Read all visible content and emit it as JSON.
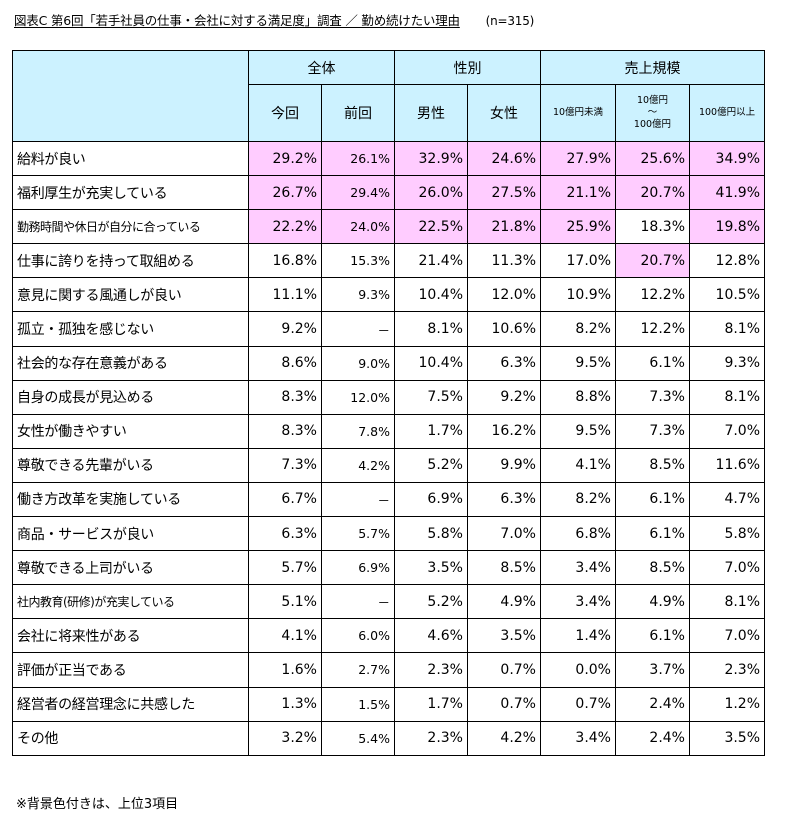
{
  "title": {
    "main": "図表C 第6回「若手社員の仕事・会社に対する満足度」調査 ／ 勤め続けたい理由",
    "n": "(n=315)"
  },
  "footnote": "※背景色付きは、上位3項目",
  "colors": {
    "header_bg": "#ccf2ff",
    "highlight_bg": "#ffccff"
  },
  "chart_data": {
    "type": "table",
    "groups": [
      {
        "label": "全体",
        "columns": [
          "今回",
          "前回"
        ]
      },
      {
        "label": "性別",
        "columns": [
          "男性",
          "女性"
        ]
      },
      {
        "label": "売上規模",
        "columns": [
          "10億円未満",
          "10億円\n～\n100億円",
          "100億円以上"
        ]
      }
    ],
    "columns": [
      "今回",
      "前回",
      "男性",
      "女性",
      "10億円未満",
      "10億円～100億円",
      "100億円以上"
    ],
    "rows": [
      {
        "label": "給料が良い",
        "values": [
          "29.2%",
          "26.1%",
          "32.9%",
          "24.6%",
          "27.9%",
          "25.6%",
          "34.9%"
        ],
        "highlight": [
          true,
          true,
          true,
          true,
          true,
          true,
          true
        ]
      },
      {
        "label": "福利厚生が充実している",
        "values": [
          "26.7%",
          "29.4%",
          "26.0%",
          "27.5%",
          "21.1%",
          "20.7%",
          "41.9%"
        ],
        "highlight": [
          true,
          true,
          true,
          true,
          true,
          true,
          true
        ]
      },
      {
        "label": "勤務時間や休日が自分に合っている",
        "values": [
          "22.2%",
          "24.0%",
          "22.5%",
          "21.8%",
          "25.9%",
          "18.3%",
          "19.8%"
        ],
        "highlight": [
          true,
          true,
          true,
          true,
          true,
          false,
          true
        ]
      },
      {
        "label": "仕事に誇りを持って取組める",
        "values": [
          "16.8%",
          "15.3%",
          "21.4%",
          "11.3%",
          "17.0%",
          "20.7%",
          "12.8%"
        ],
        "highlight": [
          false,
          false,
          false,
          false,
          false,
          true,
          false
        ]
      },
      {
        "label": "意見に関する風通しが良い",
        "values": [
          "11.1%",
          "9.3%",
          "10.4%",
          "12.0%",
          "10.9%",
          "12.2%",
          "10.5%"
        ],
        "highlight": [
          false,
          false,
          false,
          false,
          false,
          false,
          false
        ]
      },
      {
        "label": "孤立・孤独を感じない",
        "values": [
          "9.2%",
          "－",
          "8.1%",
          "10.6%",
          "8.2%",
          "12.2%",
          "8.1%"
        ],
        "highlight": [
          false,
          false,
          false,
          false,
          false,
          false,
          false
        ]
      },
      {
        "label": "社会的な存在意義がある",
        "values": [
          "8.6%",
          "9.0%",
          "10.4%",
          "6.3%",
          "9.5%",
          "6.1%",
          "9.3%"
        ],
        "highlight": [
          false,
          false,
          false,
          false,
          false,
          false,
          false
        ]
      },
      {
        "label": "自身の成長が見込める",
        "values": [
          "8.3%",
          "12.0%",
          "7.5%",
          "9.2%",
          "8.8%",
          "7.3%",
          "8.1%"
        ],
        "highlight": [
          false,
          false,
          false,
          false,
          false,
          false,
          false
        ]
      },
      {
        "label": "女性が働きやすい",
        "values": [
          "8.3%",
          "7.8%",
          "1.7%",
          "16.2%",
          "9.5%",
          "7.3%",
          "7.0%"
        ],
        "highlight": [
          false,
          false,
          false,
          false,
          false,
          false,
          false
        ]
      },
      {
        "label": "尊敬できる先輩がいる",
        "values": [
          "7.3%",
          "4.2%",
          "5.2%",
          "9.9%",
          "4.1%",
          "8.5%",
          "11.6%"
        ],
        "highlight": [
          false,
          false,
          false,
          false,
          false,
          false,
          false
        ]
      },
      {
        "label": "働き方改革を実施している",
        "values": [
          "6.7%",
          "－",
          "6.9%",
          "6.3%",
          "8.2%",
          "6.1%",
          "4.7%"
        ],
        "highlight": [
          false,
          false,
          false,
          false,
          false,
          false,
          false
        ]
      },
      {
        "label": "商品・サービスが良い",
        "values": [
          "6.3%",
          "5.7%",
          "5.8%",
          "7.0%",
          "6.8%",
          "6.1%",
          "5.8%"
        ],
        "highlight": [
          false,
          false,
          false,
          false,
          false,
          false,
          false
        ]
      },
      {
        "label": "尊敬できる上司がいる",
        "values": [
          "5.7%",
          "6.9%",
          "3.5%",
          "8.5%",
          "3.4%",
          "8.5%",
          "7.0%"
        ],
        "highlight": [
          false,
          false,
          false,
          false,
          false,
          false,
          false
        ]
      },
      {
        "label": "社内教育(研修)が充実している",
        "values": [
          "5.1%",
          "－",
          "5.2%",
          "4.9%",
          "3.4%",
          "4.9%",
          "8.1%"
        ],
        "highlight": [
          false,
          false,
          false,
          false,
          false,
          false,
          false
        ]
      },
      {
        "label": "会社に将来性がある",
        "values": [
          "4.1%",
          "6.0%",
          "4.6%",
          "3.5%",
          "1.4%",
          "6.1%",
          "7.0%"
        ],
        "highlight": [
          false,
          false,
          false,
          false,
          false,
          false,
          false
        ]
      },
      {
        "label": "評価が正当である",
        "values": [
          "1.6%",
          "2.7%",
          "2.3%",
          "0.7%",
          "0.0%",
          "3.7%",
          "2.3%"
        ],
        "highlight": [
          false,
          false,
          false,
          false,
          false,
          false,
          false
        ]
      },
      {
        "label": "経営者の経営理念に共感した",
        "values": [
          "1.3%",
          "1.5%",
          "1.7%",
          "0.7%",
          "0.7%",
          "2.4%",
          "1.2%"
        ],
        "highlight": [
          false,
          false,
          false,
          false,
          false,
          false,
          false
        ]
      },
      {
        "label": "その他",
        "values": [
          "3.2%",
          "5.4%",
          "2.3%",
          "4.2%",
          "3.4%",
          "2.4%",
          "3.5%"
        ],
        "highlight": [
          false,
          false,
          false,
          false,
          false,
          false,
          false
        ]
      }
    ]
  }
}
